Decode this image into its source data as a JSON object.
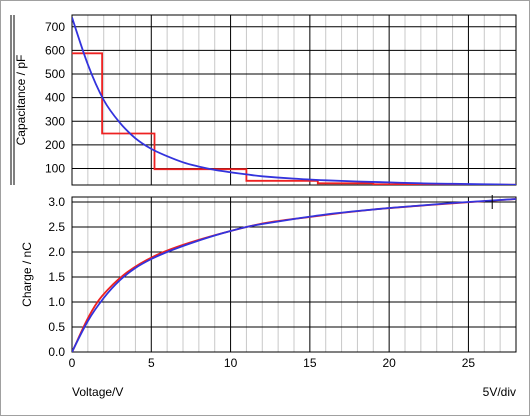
{
  "chart_data": [
    {
      "type": "line",
      "ylabel": "Capacitance / pF",
      "xlim": [
        0,
        28
      ],
      "ylim": [
        30,
        750
      ],
      "xticks": [
        0,
        5,
        10,
        15,
        20,
        25
      ],
      "yticks": [
        100,
        200,
        300,
        400,
        500,
        600,
        700
      ],
      "ytick_labels": [
        "100",
        "200",
        "300",
        "400",
        "500",
        "600",
        "700"
      ],
      "grid": true,
      "series": [
        {
          "color": "#3333dd",
          "kind": "smooth",
          "points": [
            [
              0,
              740
            ],
            [
              1,
              540
            ],
            [
              2,
              390
            ],
            [
              3,
              295
            ],
            [
              4,
              228
            ],
            [
              5,
              183
            ],
            [
              6,
              152
            ],
            [
              7,
              126
            ],
            [
              8,
              108
            ],
            [
              9,
              94
            ],
            [
              10,
              84
            ],
            [
              11,
              75
            ],
            [
              12,
              67
            ],
            [
              14,
              57
            ],
            [
              16,
              50
            ],
            [
              18,
              45
            ],
            [
              20,
              41
            ],
            [
              22,
              37
            ],
            [
              24,
              35
            ],
            [
              26,
              33
            ],
            [
              28,
              31
            ]
          ]
        },
        {
          "color": "#ee2222",
          "kind": "step",
          "points": [
            [
              0,
              588
            ],
            [
              1.9,
              588
            ],
            [
              1.9,
              248
            ],
            [
              5.2,
              248
            ],
            [
              5.2,
              97
            ],
            [
              11.0,
              97
            ],
            [
              11.0,
              48
            ],
            [
              15.5,
              48
            ],
            [
              15.5,
              37
            ],
            [
              19.0,
              37
            ],
            [
              19.0,
              33
            ],
            [
              23.0,
              33
            ],
            [
              23.0,
              31
            ],
            [
              28,
              31
            ]
          ]
        }
      ]
    },
    {
      "type": "line",
      "xlabel": "Voltage/V",
      "ylabel": "Charge / nC",
      "scale_label": "5V/div",
      "xlim": [
        0,
        28
      ],
      "ylim": [
        0,
        3.1
      ],
      "xticks": [
        0,
        5,
        10,
        15,
        20,
        25
      ],
      "xtick_labels": [
        "0",
        "5",
        "10",
        "15",
        "20",
        "25"
      ],
      "yticks": [
        0,
        0.5,
        1.0,
        1.5,
        2.0,
        2.5,
        3.0
      ],
      "ytick_labels": [
        "0.0",
        "0.5",
        "1.0",
        "1.5",
        "2.0",
        "2.5",
        "3.0"
      ],
      "grid": true,
      "cursor": [
        26.5,
        3.0
      ],
      "series": [
        {
          "color": "#3333dd",
          "kind": "smooth",
          "points": [
            [
              0,
              0
            ],
            [
              1,
              0.62
            ],
            [
              2,
              1.08
            ],
            [
              3,
              1.43
            ],
            [
              4,
              1.68
            ],
            [
              5,
              1.86
            ],
            [
              6,
              2.0
            ],
            [
              7,
              2.12
            ],
            [
              8,
              2.23
            ],
            [
              9,
              2.33
            ],
            [
              10,
              2.42
            ],
            [
              11,
              2.5
            ],
            [
              12,
              2.56
            ],
            [
              14,
              2.66
            ],
            [
              16,
              2.75
            ],
            [
              18,
              2.82
            ],
            [
              20,
              2.88
            ],
            [
              22,
              2.93
            ],
            [
              24,
              2.98
            ],
            [
              26,
              3.02
            ],
            [
              28,
              3.06
            ]
          ]
        },
        {
          "color": "#ee2222",
          "kind": "smooth",
          "points": [
            [
              0,
              0
            ],
            [
              1.9,
              1.12
            ],
            [
              5.2,
              1.92
            ],
            [
              11.0,
              2.5
            ],
            [
              15.5,
              2.72
            ],
            [
              19.0,
              2.85
            ],
            [
              23.0,
              2.95
            ],
            [
              28,
              3.06
            ]
          ]
        }
      ]
    }
  ]
}
